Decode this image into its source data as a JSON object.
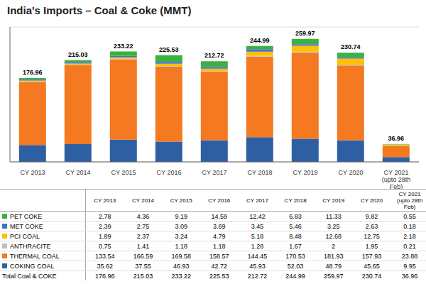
{
  "chart_data": {
    "type": "bar",
    "title": "India's Imports – Coal & Coke (MMT)",
    "categories": [
      "CY 2013",
      "CY 2014",
      "CY 2015",
      "CY 2016",
      "CY 2017",
      "CY 2018",
      "CY 2019",
      "CY 2020",
      "CY 2021\n(upto 28th\nFeb)"
    ],
    "series": [
      {
        "name": "COKING COAL",
        "color": "#2E5FA3",
        "values": [
          35.62,
          37.55,
          46.93,
          42.72,
          45.93,
          52.03,
          48.79,
          45.65,
          9.95
        ]
      },
      {
        "name": "THERMAL COAL",
        "color": "#F47920",
        "values": [
          133.54,
          166.59,
          169.58,
          158.57,
          144.45,
          170.53,
          181.93,
          157.93,
          23.88
        ]
      },
      {
        "name": "ANTHRACITE",
        "color": "#BFBFBF",
        "values": [
          0.75,
          1.41,
          1.18,
          1.18,
          1.28,
          1.67,
          2.0,
          1.95,
          0.21
        ]
      },
      {
        "name": "PCI COAL",
        "color": "#FFC000",
        "values": [
          1.89,
          2.37,
          3.24,
          4.79,
          5.18,
          8.48,
          12.68,
          12.75,
          2.18
        ]
      },
      {
        "name": "MET COKE",
        "color": "#4472C4",
        "values": [
          2.39,
          2.75,
          3.09,
          3.69,
          3.45,
          5.46,
          3.25,
          2.63,
          0.18
        ]
      },
      {
        "name": "PET COKE",
        "color": "#3CB043",
        "values": [
          2.78,
          4.36,
          9.19,
          14.59,
          12.42,
          6.83,
          11.33,
          9.82,
          0.55
        ]
      }
    ],
    "totals": {
      "name": "Total Coal & COKE",
      "values": [
        176.96,
        215.03,
        233.22,
        225.53,
        212.72,
        244.99,
        259.97,
        230.74,
        36.96
      ]
    },
    "stacked": true,
    "ylim": [
      0,
      285
    ],
    "yticks": [
      0,
      50,
      100,
      150,
      200,
      250
    ],
    "grid": true,
    "tick_labels": "x"
  }
}
